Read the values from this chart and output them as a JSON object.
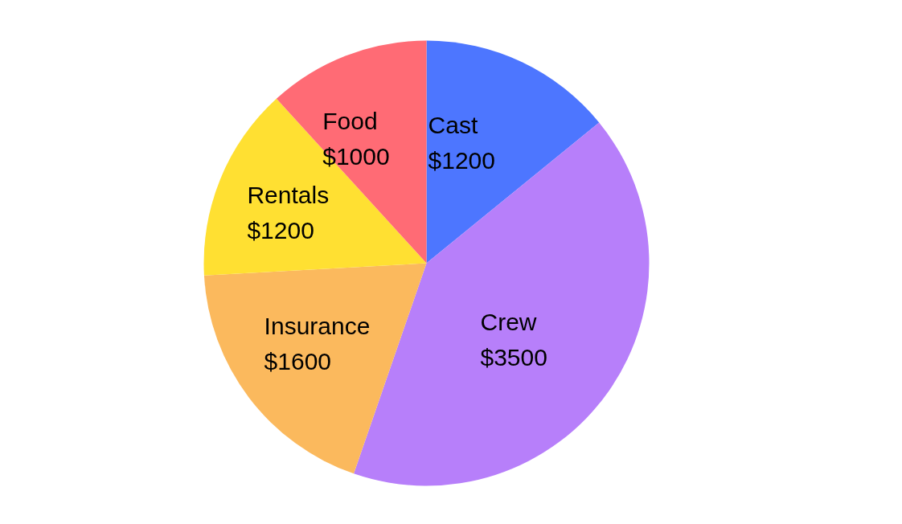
{
  "chart_data": {
    "type": "pie",
    "categories": [
      "Cast",
      "Crew",
      "Insurance",
      "Rentals",
      "Food"
    ],
    "values": [
      1200,
      3500,
      1600,
      1200,
      1000
    ],
    "value_labels": [
      "$1200",
      "$3500",
      "$1600",
      "$1200",
      "$1000"
    ],
    "colors": [
      "#4d76ff",
      "#b77ffa",
      "#fbb95d",
      "#ffe032",
      "#ff6b75"
    ]
  }
}
